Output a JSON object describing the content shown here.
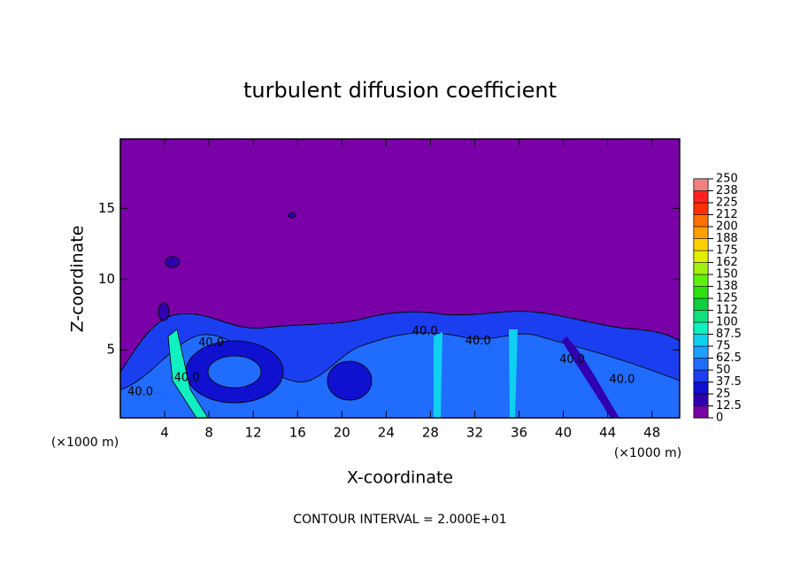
{
  "chart_data": {
    "type": "contour",
    "title": "turbulent diffusion coefficient",
    "xlabel": "X-coordinate",
    "ylabel": "Z-coordinate",
    "x_unit": "(×1000 m)",
    "x_unit_right": "(×1000 m)",
    "footer": "CONTOUR INTERVAL = 2.000E+01",
    "background_color": "#7a00a8",
    "xlim": [
      0,
      50.5
    ],
    "xticks": [
      4,
      8,
      12,
      16,
      20,
      24,
      28,
      32,
      36,
      40,
      44,
      48
    ],
    "ylim": [
      0.2,
      19.9
    ],
    "yticks": [
      5,
      10,
      15
    ],
    "contour_labels": [
      {
        "text": "40.0",
        "x": 1.8,
        "z": 2.0
      },
      {
        "text": "40.0",
        "x": 6.0,
        "z": 3.0
      },
      {
        "text": "40.0",
        "x": 8.2,
        "z": 5.5
      },
      {
        "text": "40.0",
        "x": 27.5,
        "z": 6.3
      },
      {
        "text": "40.0",
        "x": 32.3,
        "z": 5.6
      },
      {
        "text": "40.0",
        "x": 40.8,
        "z": 4.3
      },
      {
        "text": "40.0",
        "x": 45.3,
        "z": 2.9
      }
    ],
    "colorbar": {
      "ticks": [
        0,
        12.5,
        25,
        37.5,
        50,
        62.5,
        75,
        87.5,
        100,
        {
          "value": 112.5,
          "label": "112"
        },
        125,
        {
          "value": 137.5,
          "label": "138"
        },
        150,
        {
          "value": 162.5,
          "label": "162"
        },
        175,
        {
          "value": 187.5,
          "label": "188"
        },
        200,
        {
          "value": 212.5,
          "label": "212"
        },
        225,
        {
          "value": 237.5,
          "label": "238"
        },
        250
      ],
      "colors": [
        "#7a00a8",
        "#3000b0",
        "#1010d0",
        "#1a3ef0",
        "#1f6cff",
        "#1fa0ff",
        "#10d0f0",
        "#10f0c0",
        "#10e080",
        "#10d040",
        "#30e010",
        "#60f010",
        "#a0f010",
        "#e0f000",
        "#ffd000",
        "#ffa000",
        "#ff7000",
        "#ff3000",
        "#ff2020",
        "#f08080"
      ]
    }
  }
}
